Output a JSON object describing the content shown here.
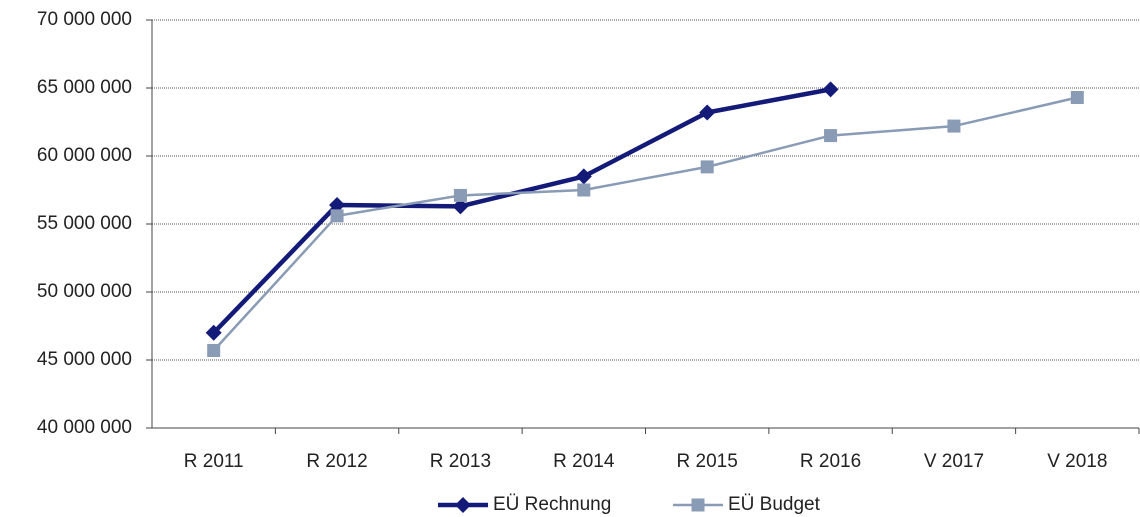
{
  "chart_data": {
    "type": "line",
    "categories": [
      "R 2011",
      "R 2012",
      "R 2013",
      "R 2014",
      "R 2015",
      "R 2016",
      "V 2017",
      "V 2018"
    ],
    "series": [
      {
        "name": "EÜ Rechnung",
        "color": "#141a78",
        "marker": "diamond",
        "values": [
          47000000,
          56400000,
          56300000,
          58500000,
          63200000,
          64900000,
          null,
          null
        ]
      },
      {
        "name": "EÜ Budget",
        "color": "#8a9bb5",
        "marker": "square",
        "values": [
          45700000,
          55600000,
          57100000,
          57500000,
          59200000,
          61500000,
          62200000,
          64300000
        ]
      }
    ],
    "ylim": [
      40000000,
      70000000
    ],
    "yticks": [
      {
        "value": 40000000,
        "label": "40 000 000"
      },
      {
        "value": 45000000,
        "label": "45 000 000"
      },
      {
        "value": 50000000,
        "label": "50 000 000"
      },
      {
        "value": 55000000,
        "label": "55 000 000"
      },
      {
        "value": 60000000,
        "label": "60 000 000"
      },
      {
        "value": 65000000,
        "label": "65 000 000"
      },
      {
        "value": 70000000,
        "label": "70 000 000"
      }
    ],
    "grid": true,
    "legend": "bottom"
  }
}
